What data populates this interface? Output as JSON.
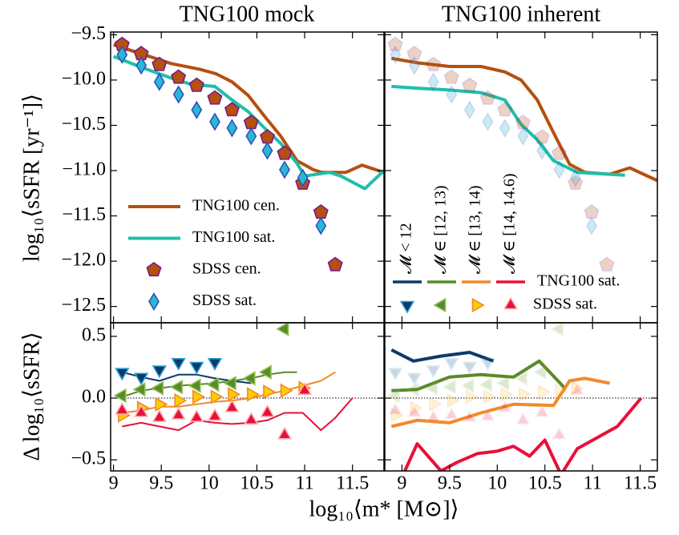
{
  "chart_data": [
    {
      "type": "line",
      "title": "TNG100 mock",
      "ylabel": "log₁₀⟨sSFR [yr⁻¹]⟩",
      "xlim": [
        8.97,
        11.83
      ],
      "ylim": [
        -12.68,
        -9.47
      ],
      "xticks": [
        9,
        9.5,
        10,
        10.5,
        11,
        11.5
      ],
      "yticks": [
        {
          "value": -9.5,
          "label": "−9.5"
        },
        {
          "value": -10.0,
          "label": "−10.0"
        },
        {
          "value": -10.5,
          "label": "−10.5"
        },
        {
          "value": -11.0,
          "label": "−11.0"
        },
        {
          "value": -11.5,
          "label": "−11.5"
        },
        {
          "value": -12.0,
          "label": "−12.0"
        },
        {
          "value": -12.5,
          "label": "−12.5"
        }
      ],
      "series": [
        {
          "name": "TNG100 cen.",
          "style": "line",
          "color": "#b5500f",
          "x": [
            9.0,
            9.32,
            9.61,
            9.9,
            10.07,
            10.24,
            10.41,
            10.58,
            10.75,
            10.92,
            11.09,
            11.18,
            11.43,
            11.6,
            11.83
          ],
          "values": [
            -9.61,
            -9.72,
            -9.82,
            -9.88,
            -9.93,
            -10.02,
            -10.17,
            -10.4,
            -10.62,
            -10.89,
            -10.99,
            -11.02,
            -11.02,
            -10.94,
            -11.02
          ]
        },
        {
          "name": "TNG100 sat.",
          "style": "line",
          "color": "#1fbfaa",
          "x": [
            9.0,
            9.32,
            9.61,
            9.82,
            10.06,
            10.24,
            10.41,
            10.58,
            10.75,
            10.92,
            11.0,
            11.26,
            11.38,
            11.63,
            11.83
          ],
          "values": [
            -9.74,
            -9.87,
            -9.98,
            -10.05,
            -10.07,
            -10.22,
            -10.35,
            -10.53,
            -10.7,
            -10.92,
            -11.06,
            -11.02,
            -11.06,
            -11.2,
            -11.0
          ]
        },
        {
          "name": "SDSS cen.",
          "style": "marker",
          "marker": "pentagon",
          "color": "#b5500f",
          "edgecolor": "#7a1a8a",
          "x": [
            9.09,
            9.29,
            9.48,
            9.68,
            9.87,
            10.06,
            10.24,
            10.44,
            10.61,
            10.79,
            10.98,
            11.17,
            11.32
          ],
          "values": [
            -9.61,
            -9.71,
            -9.83,
            -9.97,
            -10.06,
            -10.2,
            -10.33,
            -10.47,
            -10.63,
            -10.81,
            -11.14,
            -11.46,
            -12.04
          ]
        },
        {
          "name": "SDSS sat.",
          "style": "marker",
          "marker": "diamond",
          "color": "#2ab8d0",
          "edgecolor": "#3050c0",
          "x": [
            9.09,
            9.29,
            9.48,
            9.68,
            9.87,
            10.06,
            10.24,
            10.44,
            10.61,
            10.79,
            10.98,
            11.17
          ],
          "values": [
            -9.72,
            -9.84,
            -10.02,
            -10.16,
            -10.33,
            -10.46,
            -10.53,
            -10.62,
            -10.78,
            -10.99,
            -11.08,
            -11.61
          ]
        }
      ]
    },
    {
      "type": "line",
      "title": "TNG100 inherent",
      "xlim": [
        8.82,
        11.68
      ],
      "ylim": [
        -12.68,
        -9.47
      ],
      "xticks": [
        9,
        9.5,
        10,
        10.5,
        11,
        11.5
      ],
      "yticks": [
        -9.5,
        -10.0,
        -10.5,
        -11.0,
        -11.5,
        -12.0,
        -12.5
      ],
      "series": [
        {
          "style": "line",
          "color": "#b5500f",
          "x": [
            8.89,
            9.16,
            9.5,
            9.83,
            10.08,
            10.25,
            10.42,
            10.59,
            10.76,
            10.92,
            11.18,
            11.39,
            11.68
          ],
          "values": [
            -9.76,
            -9.81,
            -9.85,
            -9.85,
            -9.91,
            -10.0,
            -10.22,
            -10.58,
            -10.93,
            -11.02,
            -11.04,
            -10.97,
            -11.11
          ]
        },
        {
          "style": "line",
          "color": "#1fbfaa",
          "x": [
            8.89,
            9.16,
            9.5,
            9.83,
            10.08,
            10.25,
            10.42,
            10.59,
            10.84,
            11.34
          ],
          "values": [
            -10.07,
            -10.09,
            -10.11,
            -10.14,
            -10.22,
            -10.49,
            -10.66,
            -10.89,
            -11.02,
            -11.05
          ]
        },
        {
          "style": "marker",
          "marker": "pentagon",
          "color": "#b5500f",
          "edgecolor": "#7a1a8a",
          "alpha": 0.25,
          "x": [
            8.93,
            9.13,
            9.33,
            9.52,
            9.71,
            9.9,
            10.08,
            10.27,
            10.47,
            10.65,
            10.82,
            10.99,
            11.15
          ],
          "values": [
            -9.61,
            -9.71,
            -9.83,
            -9.97,
            -10.06,
            -10.2,
            -10.33,
            -10.47,
            -10.63,
            -10.81,
            -11.14,
            -11.46,
            -12.04
          ]
        },
        {
          "style": "marker",
          "marker": "diamond",
          "color": "#2ab8d0",
          "edgecolor": "#3050c0",
          "alpha": 0.25,
          "x": [
            8.93,
            9.13,
            9.33,
            9.52,
            9.71,
            9.9,
            10.08,
            10.27,
            10.47,
            10.65,
            10.82,
            10.99
          ],
          "values": [
            -9.72,
            -9.84,
            -10.02,
            -10.16,
            -10.33,
            -10.46,
            -10.53,
            -10.62,
            -10.78,
            -10.99,
            -11.08,
            -11.61
          ]
        }
      ],
      "legend": {
        "entries": [
          {
            "name": "𝓜 < 12",
            "color": "#0d3a6b",
            "edgecolor": "#2aa0d0",
            "marker": "triangle-down"
          },
          {
            "name": "𝓜 ∈ [12, 13)",
            "color": "#5a8a2a",
            "edgecolor": "#8ac050",
            "marker": "triangle-left"
          },
          {
            "name": "𝓜 ∈ [13, 14)",
            "color": "#f08a2a",
            "edgecolor": "#f08a2a",
            "fill": "#ffcc00",
            "marker": "triangle-right"
          },
          {
            "name": "𝓜 ∈ [14, 14.6)",
            "color": "#e8103a",
            "edgecolor": "#ffb0b0",
            "marker": "triangle-up"
          }
        ],
        "line_label": "TNG100 sat.",
        "marker_label": "SDSS sat."
      }
    },
    {
      "type": "line",
      "ylabel": "Δ log₁₀⟨sSFR⟩",
      "xlabel": "log₁₀⟨m* [M⊙]⟩",
      "xlim": [
        8.97,
        11.83
      ],
      "ylim": [
        -0.59,
        0.61
      ],
      "hline": 0,
      "xticks": [
        9,
        9.5,
        10,
        10.5,
        11,
        11.5
      ],
      "yticks": [
        0.5,
        {
          "value": 0.0,
          "label": "0.0"
        },
        {
          "value": -0.5,
          "label": "−0.5"
        }
      ],
      "series": [
        {
          "style": "thinline",
          "color": "#0d3a6b",
          "x": [
            9.09,
            9.29,
            9.48,
            9.68,
            9.87,
            10.06,
            10.24,
            10.44
          ],
          "values": [
            0.21,
            0.17,
            0.14,
            0.19,
            0.19,
            0.16,
            0.14,
            0.12
          ]
        },
        {
          "style": "marker",
          "marker": "triangle-down",
          "color": "#0d3a6b",
          "edgecolor": "#2aa0d0",
          "x": [
            9.09,
            9.29,
            9.48,
            9.68,
            9.87,
            10.06
          ],
          "values": [
            0.21,
            0.17,
            0.23,
            0.29,
            0.26,
            0.29
          ]
        },
        {
          "style": "thinline",
          "color": "#5a8a2a",
          "x": [
            9.09,
            9.29,
            9.48,
            9.68,
            9.87,
            10.06,
            10.24,
            10.44,
            10.61,
            10.79,
            10.92
          ],
          "values": [
            0.01,
            0.06,
            0.08,
            0.1,
            0.11,
            0.12,
            0.14,
            0.16,
            0.19,
            0.21,
            0.21
          ]
        },
        {
          "style": "marker",
          "marker": "triangle-left",
          "color": "#5a8a2a",
          "edgecolor": "#8ac050",
          "x": [
            9.09,
            9.29,
            9.48,
            9.68,
            9.87,
            10.06,
            10.24,
            10.44,
            10.61,
            10.79
          ],
          "values": [
            0.02,
            0.07,
            0.08,
            0.09,
            0.1,
            0.11,
            0.12,
            0.16,
            0.21,
            0.56
          ]
        },
        {
          "style": "thinline",
          "color": "#f08a2a",
          "x": [
            9.09,
            9.29,
            9.48,
            9.68,
            9.87,
            10.06,
            10.24,
            10.44,
            10.61,
            10.79,
            10.98,
            11.17,
            11.32
          ],
          "values": [
            -0.12,
            -0.1,
            -0.07,
            -0.07,
            -0.05,
            -0.03,
            -0.02,
            0.0,
            0.03,
            0.06,
            0.1,
            0.14,
            0.21
          ]
        },
        {
          "style": "marker",
          "marker": "triangle-right",
          "color": "#ffcc00",
          "edgecolor": "#f08a2a",
          "x": [
            9.09,
            9.29,
            9.48,
            9.68,
            9.87,
            10.06,
            10.24,
            10.44,
            10.61,
            10.79,
            10.98
          ],
          "values": [
            -0.14,
            -0.08,
            -0.05,
            -0.02,
            0.01,
            0.01,
            0.03,
            0.03,
            0.05,
            0.06,
            0.08
          ]
        },
        {
          "style": "thinline",
          "color": "#e8103a",
          "x": [
            9.09,
            9.29,
            9.48,
            9.68,
            9.87,
            10.06,
            10.24,
            10.44,
            10.61,
            10.79,
            10.98,
            11.17,
            11.32,
            11.5
          ],
          "values": [
            -0.23,
            -0.2,
            -0.23,
            -0.26,
            -0.18,
            -0.2,
            -0.21,
            -0.2,
            -0.18,
            -0.12,
            -0.12,
            -0.26,
            -0.16,
            0.0
          ]
        },
        {
          "style": "marker",
          "marker": "triangle-up",
          "color": "#e8103a",
          "edgecolor": "#ffb0b0",
          "x": [
            9.09,
            9.29,
            9.48,
            9.68,
            9.87,
            10.06,
            10.24,
            10.44,
            10.61,
            10.79,
            11.0
          ],
          "values": [
            -0.1,
            -0.12,
            -0.16,
            -0.14,
            -0.16,
            -0.15,
            -0.08,
            -0.18,
            -0.12,
            -0.3,
            0.06
          ]
        }
      ]
    },
    {
      "type": "line",
      "xlim": [
        8.82,
        11.68
      ],
      "ylim": [
        -0.59,
        0.61
      ],
      "hline": 0,
      "xticks": [
        9,
        9.5,
        10,
        10.5,
        11,
        11.5
      ],
      "yticks": [
        0.5,
        0.0,
        -0.5
      ],
      "series": [
        {
          "style": "line",
          "color": "#0d3a6b",
          "x": [
            8.89,
            9.12,
            9.41,
            9.71,
            9.96
          ],
          "values": [
            0.39,
            0.3,
            0.34,
            0.37,
            0.3
          ]
        },
        {
          "style": "marker",
          "marker": "triangle-down",
          "color": "#0d3a6b",
          "edgecolor": "#2aa0d0",
          "alpha": 0.2,
          "x": [
            8.93,
            9.13,
            9.33,
            9.52,
            9.71,
            9.9
          ],
          "values": [
            0.21,
            0.17,
            0.23,
            0.29,
            0.26,
            0.29
          ]
        },
        {
          "style": "line",
          "color": "#5a8a2a",
          "x": [
            8.89,
            9.16,
            9.5,
            9.83,
            10.17,
            10.44,
            10.71
          ],
          "values": [
            0.06,
            0.07,
            0.17,
            0.19,
            0.17,
            0.3,
            0.08
          ]
        },
        {
          "style": "marker",
          "marker": "triangle-left",
          "color": "#5a8a2a",
          "edgecolor": "#8ac050",
          "alpha": 0.2,
          "x": [
            8.93,
            9.13,
            9.33,
            9.52,
            9.71,
            9.9,
            10.08,
            10.27,
            10.47,
            10.65
          ],
          "values": [
            0.02,
            0.07,
            0.08,
            0.09,
            0.1,
            0.11,
            0.12,
            0.16,
            0.21,
            0.56
          ]
        },
        {
          "style": "line",
          "color": "#f08a2a",
          "x": [
            8.89,
            9.16,
            9.5,
            9.83,
            10.17,
            10.59,
            10.76,
            10.92,
            11.18
          ],
          "values": [
            -0.23,
            -0.18,
            -0.2,
            -0.12,
            -0.05,
            -0.06,
            0.14,
            0.16,
            0.12
          ]
        },
        {
          "style": "marker",
          "marker": "triangle-right",
          "color": "#ffcc00",
          "edgecolor": "#f08a2a",
          "alpha": 0.2,
          "x": [
            8.93,
            9.13,
            9.33,
            9.52,
            9.71,
            9.9,
            10.08,
            10.27,
            10.47,
            10.65,
            10.82
          ],
          "values": [
            -0.14,
            -0.08,
            -0.05,
            -0.02,
            0.01,
            0.01,
            0.03,
            0.03,
            0.05,
            0.06,
            0.08
          ]
        },
        {
          "style": "line",
          "color": "#e8103a",
          "x": [
            9.03,
            9.16,
            9.41,
            9.58,
            9.79,
            10.0,
            10.17,
            10.34,
            10.5,
            10.67,
            10.84,
            11.05,
            11.26,
            11.51
          ],
          "values": [
            -0.59,
            -0.37,
            -0.59,
            -0.52,
            -0.45,
            -0.43,
            -0.39,
            -0.47,
            -0.34,
            -0.62,
            -0.41,
            -0.32,
            -0.23,
            0.0
          ]
        },
        {
          "style": "marker",
          "marker": "triangle-up",
          "color": "#e8103a",
          "edgecolor": "#ffb0b0",
          "alpha": 0.2,
          "x": [
            8.93,
            9.13,
            9.33,
            9.52,
            9.71,
            9.9,
            10.08,
            10.27,
            10.47,
            10.65,
            10.84
          ],
          "values": [
            -0.1,
            -0.12,
            -0.16,
            -0.14,
            -0.16,
            -0.15,
            -0.08,
            -0.18,
            -0.12,
            -0.3,
            0.06
          ]
        }
      ]
    }
  ]
}
